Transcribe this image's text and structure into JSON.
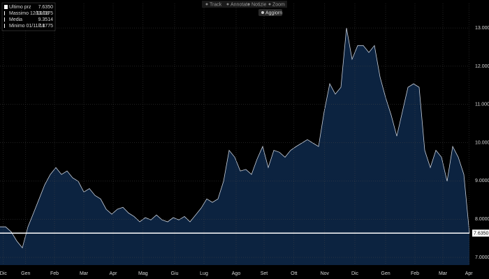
{
  "toolbar": [
    "Track",
    "Annotate",
    "Notizie",
    "Zoom"
  ],
  "refresh_button": "Aggiorn",
  "legend": [
    {
      "label": "Ultimo prz",
      "value": "7.6350"
    },
    {
      "label": "Massimo 12/10/18",
      "value": "13.1175"
    },
    {
      "label": "Media",
      "value": "9.3514"
    },
    {
      "label": "Minimo 01/11/18",
      "value": "7.1775"
    }
  ],
  "chart_data": {
    "type": "area",
    "color": "#0c2340",
    "line_color": "#c8d0dc",
    "grid": true,
    "x": [
      0,
      1,
      2,
      3,
      4,
      5,
      6,
      7,
      8,
      9,
      10,
      11,
      12,
      13,
      14,
      15,
      16,
      17,
      18,
      19,
      20,
      21,
      22,
      23,
      24,
      25,
      26,
      27,
      28,
      29,
      30,
      31,
      32,
      33,
      34,
      35,
      36,
      37,
      38,
      39,
      40,
      41,
      42,
      43,
      44,
      45,
      46,
      47,
      48,
      49,
      50,
      51,
      52,
      53,
      54,
      55,
      56,
      57,
      58,
      59,
      60,
      61,
      62,
      63,
      64,
      65,
      66,
      67,
      68,
      69,
      70,
      71,
      72,
      73,
      74,
      75,
      76,
      77,
      78,
      79,
      80,
      81,
      82,
      83,
      84
    ],
    "values": [
      7.8,
      7.8,
      7.67,
      7.43,
      7.25,
      7.8,
      8.16,
      8.53,
      8.9,
      9.17,
      9.35,
      9.17,
      9.26,
      9.08,
      8.99,
      8.71,
      8.8,
      8.62,
      8.53,
      8.26,
      8.13,
      8.26,
      8.31,
      8.16,
      8.07,
      7.93,
      8.04,
      7.98,
      8.11,
      7.98,
      7.93,
      8.04,
      7.98,
      8.07,
      7.93,
      8.11,
      8.29,
      8.53,
      8.44,
      8.53,
      8.99,
      9.8,
      9.62,
      9.26,
      9.3,
      9.17,
      9.57,
      9.9,
      9.35,
      9.8,
      9.75,
      9.62,
      9.8,
      9.9,
      9.99,
      10.08,
      9.99,
      9.9,
      10.81,
      11.54,
      11.27,
      11.45,
      13.0,
      12.18,
      12.54,
      12.54,
      12.36,
      12.54,
      11.72,
      11.18,
      10.72,
      10.17,
      10.81,
      11.45,
      11.54,
      11.45,
      9.8,
      9.35,
      9.8,
      9.62,
      8.99,
      9.9,
      9.62,
      9.17,
      7.635
    ],
    "xlim": [
      0,
      84
    ],
    "xticks": [
      {
        "value": 0.6,
        "label": "Dic"
      },
      {
        "value": 4.6,
        "label": "Gen"
      },
      {
        "value": 9.75,
        "label": "Feb"
      },
      {
        "value": 15,
        "label": "Mar"
      },
      {
        "value": 20.25,
        "label": "Apr"
      },
      {
        "value": 25.6,
        "label": "Mag"
      },
      {
        "value": 31.25,
        "label": "Giu"
      },
      {
        "value": 36.5,
        "label": "Lug"
      },
      {
        "value": 42.25,
        "label": "Ago"
      },
      {
        "value": 47.25,
        "label": "Set"
      },
      {
        "value": 52.6,
        "label": "Ott"
      },
      {
        "value": 58.1,
        "label": "Nov"
      },
      {
        "value": 63.5,
        "label": "Dic"
      },
      {
        "value": 69,
        "label": "Gen"
      },
      {
        "value": 74.25,
        "label": "Feb"
      },
      {
        "value": 79.25,
        "label": "Mar"
      },
      {
        "value": 83.9,
        "label": "Apr"
      }
    ],
    "ylim": [
      6.8,
      13.64
    ],
    "yticks": [
      {
        "value": 7,
        "label": "7.0000"
      },
      {
        "value": 8,
        "label": "8.0000"
      },
      {
        "value": 9,
        "label": "9.0000"
      },
      {
        "value": 10,
        "label": "10.0000"
      },
      {
        "value": 11,
        "label": "11.0000"
      },
      {
        "value": 12,
        "label": "12.0000"
      },
      {
        "value": 13,
        "label": "13.0000"
      }
    ],
    "reference_line": {
      "value": 7.635,
      "label": "7.6350"
    }
  }
}
